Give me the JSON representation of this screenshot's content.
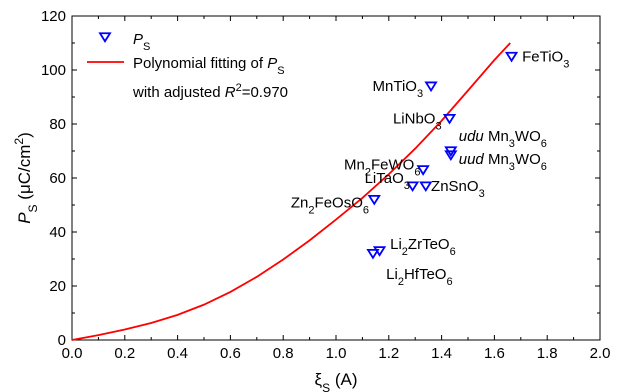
{
  "chart_data": {
    "type": "scatter",
    "xlabel_main": "ξ",
    "xlabel_sub": "S",
    "xlabel_unit": " (A)",
    "ylabel_main": "P",
    "ylabel_sub": "S",
    "ylabel_unit_pre": " (μC/cm",
    "ylabel_unit_sup": "2",
    "ylabel_unit_post": ")",
    "xlim": [
      0.0,
      2.0
    ],
    "ylim": [
      0,
      120
    ],
    "xticks": [
      "0.0",
      "0.2",
      "0.4",
      "0.6",
      "0.8",
      "1.0",
      "1.2",
      "1.4",
      "1.6",
      "1.8",
      "2.0"
    ],
    "xtick_values": [
      0.0,
      0.2,
      0.4,
      0.6,
      0.8,
      1.0,
      1.2,
      1.4,
      1.6,
      1.8,
      2.0
    ],
    "yticks": [
      "0",
      "20",
      "40",
      "60",
      "80",
      "100",
      "120"
    ],
    "ytick_values": [
      0,
      20,
      40,
      60,
      80,
      100,
      120
    ],
    "grid": false,
    "legend_position": "top-left",
    "legend": {
      "points_main": "P",
      "points_sub": "S",
      "fit_line1_pre": "Polynomial fitting of ",
      "fit_line1_main": "P",
      "fit_line1_sub": "S",
      "fit_line2_pre": "with adjusted ",
      "fit_line2_main": "R",
      "fit_line2_sup": "2",
      "fit_line2_post": "=0.970"
    },
    "colors": {
      "points": "#0000ff",
      "fit": "#ff0000",
      "axes": "#000000"
    },
    "series": [
      {
        "marker": "down-triangle",
        "points": [
          {
            "x": 1.665,
            "y": 105,
            "label_parts": [
              {
                "t": "FeTiO"
              },
              {
                "t": "3",
                "sub": true
              }
            ],
            "anchor": "start",
            "lx": 0.04,
            "ly": 0
          },
          {
            "x": 1.36,
            "y": 94,
            "label_parts": [
              {
                "t": "MnTiO"
              },
              {
                "t": "3",
                "sub": true
              }
            ],
            "anchor": "end",
            "lx": -0.03,
            "ly": 0
          },
          {
            "x": 1.43,
            "y": 82,
            "label_parts": [
              {
                "t": "LiNbO"
              },
              {
                "t": "3",
                "sub": true
              }
            ],
            "anchor": "end",
            "lx": -0.03,
            "ly": 0
          },
          {
            "x": 1.435,
            "y": 70,
            "label_parts": [
              {
                "t": "udu",
                "italic": true
              },
              {
                "t": " Mn"
              },
              {
                "t": "3",
                "sub": true
              },
              {
                "t": "WO"
              },
              {
                "t": "6",
                "sub": true
              }
            ],
            "anchor": "start",
            "lx": 0.03,
            "ly": 5.5
          },
          {
            "x": 1.435,
            "y": 68.5,
            "label_parts": [
              {
                "t": "uud",
                "italic": true
              },
              {
                "t": " Mn"
              },
              {
                "t": "3",
                "sub": true
              },
              {
                "t": "WO"
              },
              {
                "t": "6",
                "sub": true
              }
            ],
            "anchor": "start",
            "lx": 0.03,
            "ly": -1.5
          },
          {
            "x": 1.33,
            "y": 63,
            "label_parts": [
              {
                "t": "Mn"
              },
              {
                "t": "2",
                "sub": true
              },
              {
                "t": "FeWO"
              },
              {
                "t": "6",
                "sub": true
              }
            ],
            "anchor": "end",
            "lx": -0.01,
            "ly": 2
          },
          {
            "x": 1.29,
            "y": 57,
            "label_parts": [
              {
                "t": "LiTaO"
              },
              {
                "t": "3",
                "sub": true
              }
            ],
            "anchor": "end",
            "lx": -0.01,
            "ly": 3
          },
          {
            "x": 1.34,
            "y": 57,
            "label_parts": [
              {
                "t": "ZnSnO"
              },
              {
                "t": "3",
                "sub": true
              }
            ],
            "anchor": "start",
            "lx": 0.02,
            "ly": 0
          },
          {
            "x": 1.145,
            "y": 52,
            "label_parts": [
              {
                "t": "Zn"
              },
              {
                "t": "2",
                "sub": true
              },
              {
                "t": "FeOsO"
              },
              {
                "t": "6",
                "sub": true
              }
            ],
            "anchor": "end",
            "lx": -0.02,
            "ly": -1
          },
          {
            "x": 1.165,
            "y": 33,
            "label_parts": [
              {
                "t": "Li"
              },
              {
                "t": "2",
                "sub": true
              },
              {
                "t": "ZrTeO"
              },
              {
                "t": "6",
                "sub": true
              }
            ],
            "anchor": "start",
            "lx": 0.04,
            "ly": 2.5
          },
          {
            "x": 1.14,
            "y": 32,
            "label_parts": [
              {
                "t": "Li"
              },
              {
                "t": "2",
                "sub": true
              },
              {
                "t": "HfTeO"
              },
              {
                "t": "6",
                "sub": true
              }
            ],
            "anchor": "start",
            "lx": 0.05,
            "ly": -7.5
          }
        ]
      },
      {
        "marker": "line",
        "fit_x": [
          0.0,
          0.1,
          0.2,
          0.3,
          0.4,
          0.5,
          0.6,
          0.7,
          0.8,
          0.9,
          1.0,
          1.1,
          1.2,
          1.3,
          1.4,
          1.5,
          1.6,
          1.66
        ],
        "fit_y": [
          0,
          1.8,
          3.9,
          6.3,
          9.3,
          13.1,
          17.8,
          23.4,
          29.8,
          36.9,
          44.6,
          52.6,
          61.4,
          70.9,
          81.2,
          92.4,
          103.7,
          110
        ]
      }
    ]
  }
}
